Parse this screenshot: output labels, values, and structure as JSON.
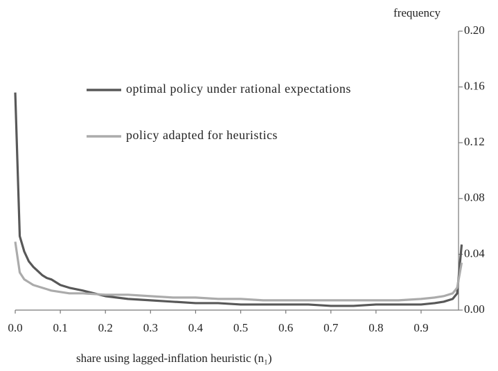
{
  "chart_data": {
    "type": "line",
    "y_axis_title": "frequency",
    "x_axis_title": "share using lagged-inflation heuristic (n₁)",
    "x": [
      0,
      0.01,
      0.02,
      0.03,
      0.04,
      0.05,
      0.06,
      0.07,
      0.08,
      0.1,
      0.12,
      0.15,
      0.2,
      0.25,
      0.3,
      0.35,
      0.4,
      0.45,
      0.5,
      0.55,
      0.6,
      0.65,
      0.7,
      0.75,
      0.8,
      0.85,
      0.9,
      0.93,
      0.95,
      0.97,
      0.98,
      0.99
    ],
    "series": [
      {
        "name": "optimal policy under rational expectations",
        "color": "#585858",
        "values": [
          0.156,
          0.053,
          0.042,
          0.035,
          0.031,
          0.028,
          0.025,
          0.023,
          0.022,
          0.018,
          0.016,
          0.014,
          0.01,
          0.008,
          0.007,
          0.006,
          0.005,
          0.005,
          0.004,
          0.004,
          0.004,
          0.004,
          0.003,
          0.003,
          0.004,
          0.004,
          0.004,
          0.005,
          0.006,
          0.008,
          0.012,
          0.047
        ]
      },
      {
        "name": "policy adapted for heuristics",
        "color": "#ababab",
        "values": [
          0.049,
          0.027,
          0.022,
          0.02,
          0.018,
          0.017,
          0.016,
          0.015,
          0.014,
          0.013,
          0.012,
          0.012,
          0.011,
          0.011,
          0.01,
          0.009,
          0.009,
          0.008,
          0.008,
          0.007,
          0.007,
          0.007,
          0.007,
          0.007,
          0.007,
          0.007,
          0.008,
          0.009,
          0.01,
          0.012,
          0.016,
          0.034
        ]
      }
    ],
    "xlim": [
      0,
      0.983
    ],
    "xticks": [
      {
        "value": 0,
        "label": "0.0"
      },
      {
        "value": 0.1,
        "label": "0.1"
      },
      {
        "value": 0.2,
        "label": "0.2"
      },
      {
        "value": 0.3,
        "label": "0.3"
      },
      {
        "value": 0.4,
        "label": "0.4"
      },
      {
        "value": 0.5,
        "label": "0.5"
      },
      {
        "value": 0.6,
        "label": "0.6"
      },
      {
        "value": 0.7,
        "label": "0.7"
      },
      {
        "value": 0.8,
        "label": "0.8"
      },
      {
        "value": 0.9,
        "label": "0.9"
      }
    ],
    "ylim": [
      0,
      0.2
    ],
    "yticks": [
      {
        "value": 0,
        "label": "0.00"
      },
      {
        "value": 0.04,
        "label": "0.04"
      },
      {
        "value": 0.08,
        "label": "0.08"
      },
      {
        "value": 0.12,
        "label": "0.12"
      },
      {
        "value": 0.16,
        "label": "0.16"
      },
      {
        "value": 0.2,
        "label": "0.20"
      }
    ],
    "y_axis_side": "right",
    "grid": false
  }
}
